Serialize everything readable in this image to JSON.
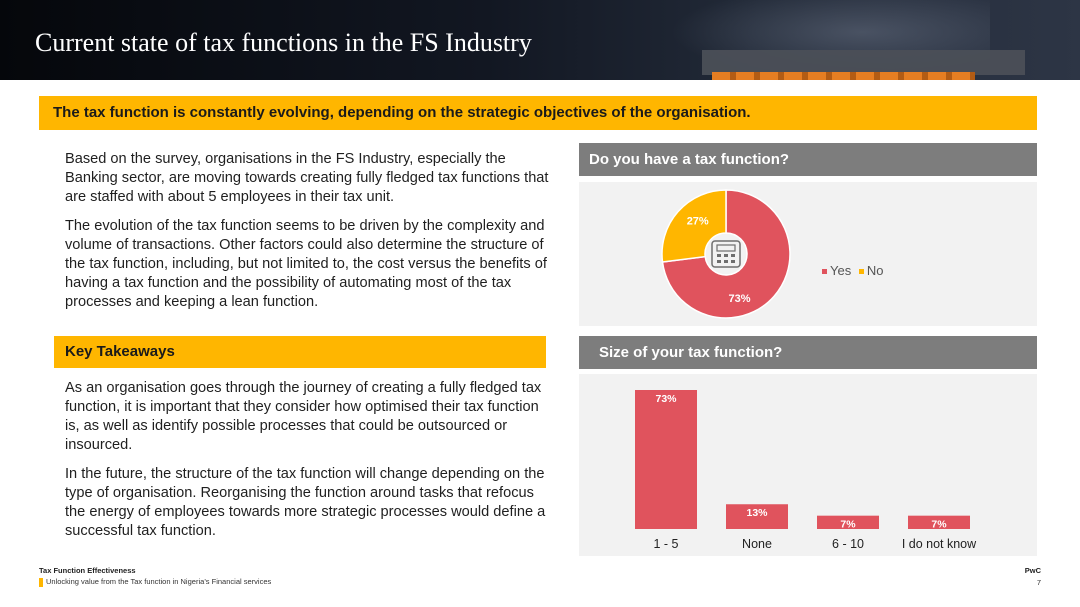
{
  "header": {
    "title": "Current state of tax functions in the FS Industry"
  },
  "banner": "The tax function is constantly evolving, depending on the strategic objectives of the organisation.",
  "body": {
    "paragraphs": [
      "Based on the survey, organisations in the FS Industry, especially the Banking sector, are moving towards creating fully fledged tax functions that are staffed with about 5 employees in their tax unit.",
      "The evolution of the tax function seems to be driven by the complexity and volume of transactions. Other factors could also determine the structure of the tax function, including, but not limited to, the cost versus the benefits of having a tax function and the possibility of automating most of the tax processes and keeping a lean function."
    ],
    "key_takeaways_label": "Key Takeaways",
    "takeaways": [
      "As an organisation goes through the journey of creating a fully fledged tax function, it is important that they consider how optimised their tax function is, as well as identify possible processes that could be outsourced or insourced.",
      "In the future, the structure of the tax function will change depending on the type of organisation. Reorganising the function around tasks that refocus the energy of employees towards more strategic processes would define a successful tax function."
    ]
  },
  "panels": {
    "pie_title": "Do you have a tax function?",
    "bar_title": "Size of your tax function?"
  },
  "chart_data": [
    {
      "type": "pie",
      "title": "Do you have a tax function?",
      "categories": [
        "Yes",
        "No"
      ],
      "values": [
        73,
        27
      ],
      "labels": [
        "73%",
        "27%"
      ],
      "colors": [
        "#e0535d",
        "#ffb600"
      ],
      "center_icon": "calculator-icon",
      "legend": "right"
    },
    {
      "type": "bar",
      "title": "Size of your tax function?",
      "categories": [
        "1 - 5",
        "None",
        "6 - 10",
        "I do not know"
      ],
      "values": [
        73,
        13,
        7,
        7
      ],
      "labels": [
        "73%",
        "13%",
        "7%",
        "7%"
      ],
      "color": "#e0535d",
      "ylim": [
        0,
        73
      ]
    }
  ],
  "footer": {
    "left_title": "Tax Function Effectiveness",
    "left_subtitle": "Unlocking value from the Tax function in Nigeria’s Financial services",
    "brand": "PwC",
    "page": "7"
  }
}
